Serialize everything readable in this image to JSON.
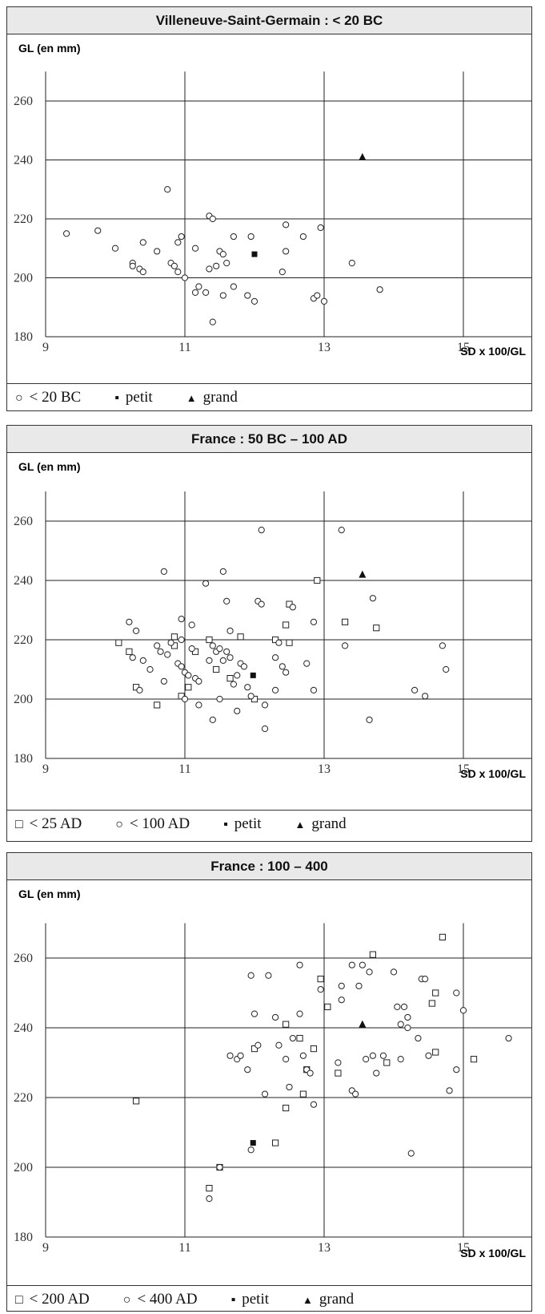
{
  "chart_data": [
    {
      "type": "scatter",
      "title": "Villeneuve-Saint-Germain : < 20 BC",
      "ylabel": "GL (en mm)",
      "xlabel": "SD x 100/GL",
      "xlim": [
        9,
        16
      ],
      "ylim": [
        180,
        270
      ],
      "x_ticks": [
        9,
        11,
        13,
        15
      ],
      "y_ticks": [
        180,
        200,
        220,
        240,
        260
      ],
      "grid": true,
      "legend": [
        {
          "symbol": "circle",
          "label": "< 20 BC"
        },
        {
          "symbol": "square-filled",
          "label": "petit"
        },
        {
          "symbol": "triangle-filled",
          "label": "grand"
        }
      ],
      "series": [
        {
          "name": "< 20 BC",
          "marker": "circle",
          "points": [
            [
              9.3,
              215
            ],
            [
              9.75,
              216
            ],
            [
              10.0,
              210
            ],
            [
              10.25,
              205
            ],
            [
              10.25,
              204
            ],
            [
              10.35,
              203
            ],
            [
              10.4,
              212
            ],
            [
              10.4,
              202
            ],
            [
              10.6,
              209
            ],
            [
              10.75,
              230
            ],
            [
              10.8,
              205
            ],
            [
              10.85,
              204
            ],
            [
              10.9,
              212
            ],
            [
              10.9,
              202
            ],
            [
              10.95,
              214
            ],
            [
              11.0,
              200
            ],
            [
              11.15,
              210
            ],
            [
              11.15,
              195
            ],
            [
              11.2,
              197
            ],
            [
              11.3,
              195
            ],
            [
              11.35,
              221
            ],
            [
              11.4,
              220
            ],
            [
              11.35,
              203
            ],
            [
              11.45,
              204
            ],
            [
              11.5,
              209
            ],
            [
              11.55,
              208
            ],
            [
              11.6,
              205
            ],
            [
              11.55,
              194
            ],
            [
              11.4,
              185
            ],
            [
              11.7,
              214
            ],
            [
              11.7,
              197
            ],
            [
              11.9,
              194
            ],
            [
              11.95,
              214
            ],
            [
              12.0,
              192
            ],
            [
              12.4,
              202
            ],
            [
              12.45,
              218
            ],
            [
              12.45,
              209
            ],
            [
              12.7,
              214
            ],
            [
              12.85,
              193
            ],
            [
              12.9,
              194
            ],
            [
              12.95,
              217
            ],
            [
              13.0,
              192
            ],
            [
              13.4,
              205
            ],
            [
              13.8,
              196
            ]
          ]
        },
        {
          "name": "petit",
          "marker": "square-filled",
          "points": [
            [
              12.0,
              208
            ]
          ]
        },
        {
          "name": "grand",
          "marker": "triangle-filled",
          "points": [
            [
              13.55,
              241
            ]
          ]
        }
      ]
    },
    {
      "type": "scatter",
      "title": "France : 50 BC – 100 AD",
      "ylabel": "GL (en mm)",
      "xlabel": "SD x 100/GL",
      "xlim": [
        9,
        16
      ],
      "ylim": [
        180,
        270
      ],
      "x_ticks": [
        9,
        11,
        13,
        15
      ],
      "y_ticks": [
        180,
        200,
        220,
        240,
        260
      ],
      "grid": true,
      "legend": [
        {
          "symbol": "square",
          "label": "< 25 AD"
        },
        {
          "symbol": "circle",
          "label": "< 100 AD"
        },
        {
          "symbol": "square-filled",
          "label": "petit"
        },
        {
          "symbol": "triangle-filled",
          "label": "grand"
        }
      ],
      "series": [
        {
          "name": "< 25 AD",
          "marker": "square",
          "points": [
            [
              10.05,
              219
            ],
            [
              10.2,
              216
            ],
            [
              10.3,
              204
            ],
            [
              10.6,
              198
            ],
            [
              10.85,
              221
            ],
            [
              10.85,
              218
            ],
            [
              10.95,
              201
            ],
            [
              11.05,
              204
            ],
            [
              11.15,
              216
            ],
            [
              11.35,
              220
            ],
            [
              11.45,
              210
            ],
            [
              11.65,
              207
            ],
            [
              11.8,
              221
            ],
            [
              12.0,
              200
            ],
            [
              12.3,
              220
            ],
            [
              12.45,
              225
            ],
            [
              12.5,
              232
            ],
            [
              12.5,
              219
            ],
            [
              12.9,
              240
            ],
            [
              13.3,
              226
            ],
            [
              13.75,
              224
            ]
          ]
        },
        {
          "name": "< 100 AD",
          "marker": "circle",
          "points": [
            [
              10.2,
              226
            ],
            [
              10.3,
              223
            ],
            [
              10.25,
              214
            ],
            [
              10.35,
              203
            ],
            [
              10.4,
              213
            ],
            [
              10.5,
              210
            ],
            [
              10.6,
              218
            ],
            [
              10.65,
              216
            ],
            [
              10.7,
              243
            ],
            [
              10.75,
              215
            ],
            [
              10.7,
              206
            ],
            [
              10.8,
              219
            ],
            [
              10.9,
              212
            ],
            [
              10.95,
              227
            ],
            [
              10.95,
              220
            ],
            [
              10.95,
              211
            ],
            [
              11.0,
              209
            ],
            [
              11.05,
              208
            ],
            [
              11.0,
              200
            ],
            [
              11.1,
              217
            ],
            [
              11.1,
              225
            ],
            [
              11.15,
              207
            ],
            [
              11.2,
              206
            ],
            [
              11.2,
              198
            ],
            [
              11.3,
              239
            ],
            [
              11.35,
              213
            ],
            [
              11.4,
              218
            ],
            [
              11.4,
              193
            ],
            [
              11.45,
              216
            ],
            [
              11.5,
              217
            ],
            [
              11.55,
              243
            ],
            [
              11.55,
              213
            ],
            [
              11.5,
              200
            ],
            [
              11.6,
              233
            ],
            [
              11.6,
              216
            ],
            [
              11.65,
              223
            ],
            [
              11.65,
              214
            ],
            [
              11.7,
              205
            ],
            [
              11.75,
              208
            ],
            [
              11.8,
              212
            ],
            [
              11.75,
              196
            ],
            [
              11.85,
              211
            ],
            [
              11.9,
              204
            ],
            [
              11.95,
              201
            ],
            [
              12.05,
              233
            ],
            [
              12.1,
              232
            ],
            [
              12.1,
              257
            ],
            [
              12.15,
              198
            ],
            [
              12.15,
              190
            ],
            [
              12.3,
              214
            ],
            [
              12.3,
              203
            ],
            [
              12.35,
              219
            ],
            [
              12.4,
              211
            ],
            [
              12.45,
              209
            ],
            [
              12.55,
              231
            ],
            [
              12.75,
              212
            ],
            [
              12.85,
              226
            ],
            [
              12.85,
              203
            ],
            [
              13.25,
              257
            ],
            [
              13.3,
              218
            ],
            [
              13.65,
              193
            ],
            [
              13.7,
              234
            ],
            [
              14.3,
              203
            ],
            [
              14.45,
              201
            ],
            [
              14.7,
              218
            ],
            [
              14.75,
              210
            ]
          ]
        },
        {
          "name": "petit",
          "marker": "square-filled",
          "points": [
            [
              11.98,
              208
            ]
          ]
        },
        {
          "name": "grand",
          "marker": "triangle-filled",
          "points": [
            [
              13.55,
              242
            ]
          ]
        }
      ]
    },
    {
      "type": "scatter",
      "title": "France : 100 – 400",
      "ylabel": "GL (en mm)",
      "xlabel": "SD x 100/GL",
      "xlim": [
        9,
        16
      ],
      "ylim": [
        180,
        270
      ],
      "x_ticks": [
        9,
        11,
        13,
        15
      ],
      "y_ticks": [
        180,
        200,
        220,
        240,
        260
      ],
      "grid": true,
      "legend": [
        {
          "symbol": "square",
          "label": "< 200 AD"
        },
        {
          "symbol": "circle",
          "label": "< 400 AD"
        },
        {
          "symbol": "square-filled",
          "label": "petit"
        },
        {
          "symbol": "triangle-filled",
          "label": "grand"
        }
      ],
      "series": [
        {
          "name": "< 200 AD",
          "marker": "square",
          "points": [
            [
              10.3,
              219
            ],
            [
              11.35,
              194
            ],
            [
              11.5,
              200
            ],
            [
              12.0,
              234
            ],
            [
              12.3,
              207
            ],
            [
              12.45,
              217
            ],
            [
              12.45,
              241
            ],
            [
              12.65,
              237
            ],
            [
              12.7,
              221
            ],
            [
              12.75,
              228
            ],
            [
              12.85,
              234
            ],
            [
              12.95,
              254
            ],
            [
              13.05,
              246
            ],
            [
              13.2,
              227
            ],
            [
              13.7,
              261
            ],
            [
              13.9,
              230
            ],
            [
              14.55,
              247
            ],
            [
              14.6,
              250
            ],
            [
              14.6,
              233
            ],
            [
              14.7,
              266
            ],
            [
              15.15,
              231
            ]
          ]
        },
        {
          "name": "< 400 AD",
          "marker": "circle",
          "points": [
            [
              11.35,
              191
            ],
            [
              11.5,
              200
            ],
            [
              11.65,
              232
            ],
            [
              11.75,
              231
            ],
            [
              11.8,
              232
            ],
            [
              11.9,
              228
            ],
            [
              11.95,
              255
            ],
            [
              11.95,
              205
            ],
            [
              12.0,
              244
            ],
            [
              12.05,
              235
            ],
            [
              12.15,
              221
            ],
            [
              12.2,
              255
            ],
            [
              12.3,
              243
            ],
            [
              12.35,
              235
            ],
            [
              12.45,
              231
            ],
            [
              12.5,
              223
            ],
            [
              12.55,
              237
            ],
            [
              12.65,
              244
            ],
            [
              12.65,
              258
            ],
            [
              12.7,
              232
            ],
            [
              12.75,
              228
            ],
            [
              12.8,
              227
            ],
            [
              12.85,
              218
            ],
            [
              12.95,
              251
            ],
            [
              13.2,
              230
            ],
            [
              13.25,
              252
            ],
            [
              13.25,
              248
            ],
            [
              13.4,
              222
            ],
            [
              13.45,
              221
            ],
            [
              13.4,
              258
            ],
            [
              13.5,
              252
            ],
            [
              13.55,
              258
            ],
            [
              13.6,
              231
            ],
            [
              13.65,
              256
            ],
            [
              13.7,
              232
            ],
            [
              13.75,
              227
            ],
            [
              13.85,
              232
            ],
            [
              14.0,
              256
            ],
            [
              14.05,
              246
            ],
            [
              14.1,
              231
            ],
            [
              14.1,
              241
            ],
            [
              14.15,
              246
            ],
            [
              14.2,
              240
            ],
            [
              14.2,
              243
            ],
            [
              14.25,
              204
            ],
            [
              14.35,
              237
            ],
            [
              14.4,
              254
            ],
            [
              14.45,
              254
            ],
            [
              14.5,
              232
            ],
            [
              14.8,
              222
            ],
            [
              14.9,
              250
            ],
            [
              14.9,
              228
            ],
            [
              15.0,
              245
            ],
            [
              15.65,
              237
            ]
          ]
        },
        {
          "name": "petit",
          "marker": "square-filled",
          "points": [
            [
              11.98,
              207
            ]
          ]
        },
        {
          "name": "grand",
          "marker": "triangle-filled",
          "points": [
            [
              13.55,
              241
            ]
          ]
        }
      ]
    }
  ]
}
